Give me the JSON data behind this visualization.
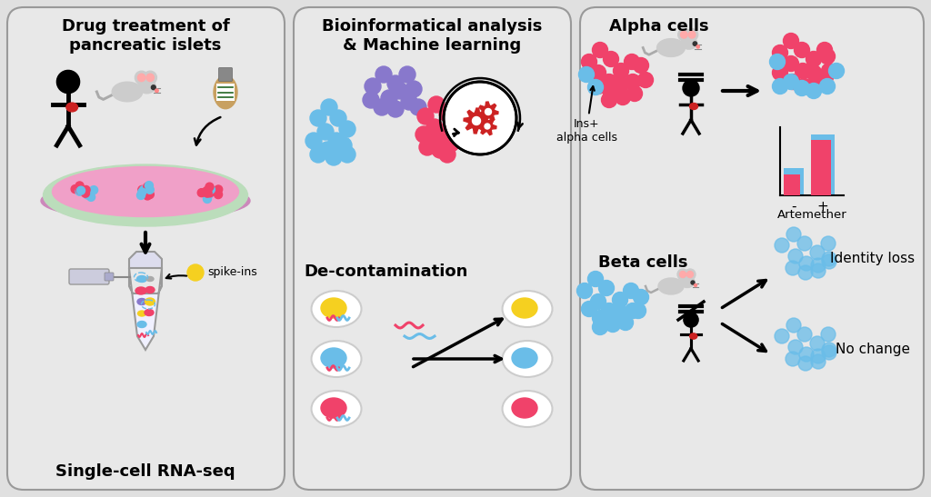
{
  "background_color": "#e0e0e0",
  "panel_bg": "#e8e8e8",
  "red_cell_color": "#F0426A",
  "blue_cell_color": "#6ABDE8",
  "purple_cell_color": "#8878CC",
  "yellow_color": "#F5D020",
  "gear_color": "#CC2222",
  "panel1_title": "Drug treatment of\npancreatic islets",
  "panel1_bottom": "Single-cell RNA-seq",
  "panel2_title": "Bioinformatical analysis\n& Machine learning",
  "panel2_subtitle": "De-contamination",
  "panel3_top_title": "Alpha cells",
  "panel3_ins_label": "Ins+\nalpha cells",
  "panel3_artemether": "Artemether",
  "panel3_bot_title": "Beta cells",
  "panel3_identity": "Identity loss",
  "panel3_nochange": "No change"
}
